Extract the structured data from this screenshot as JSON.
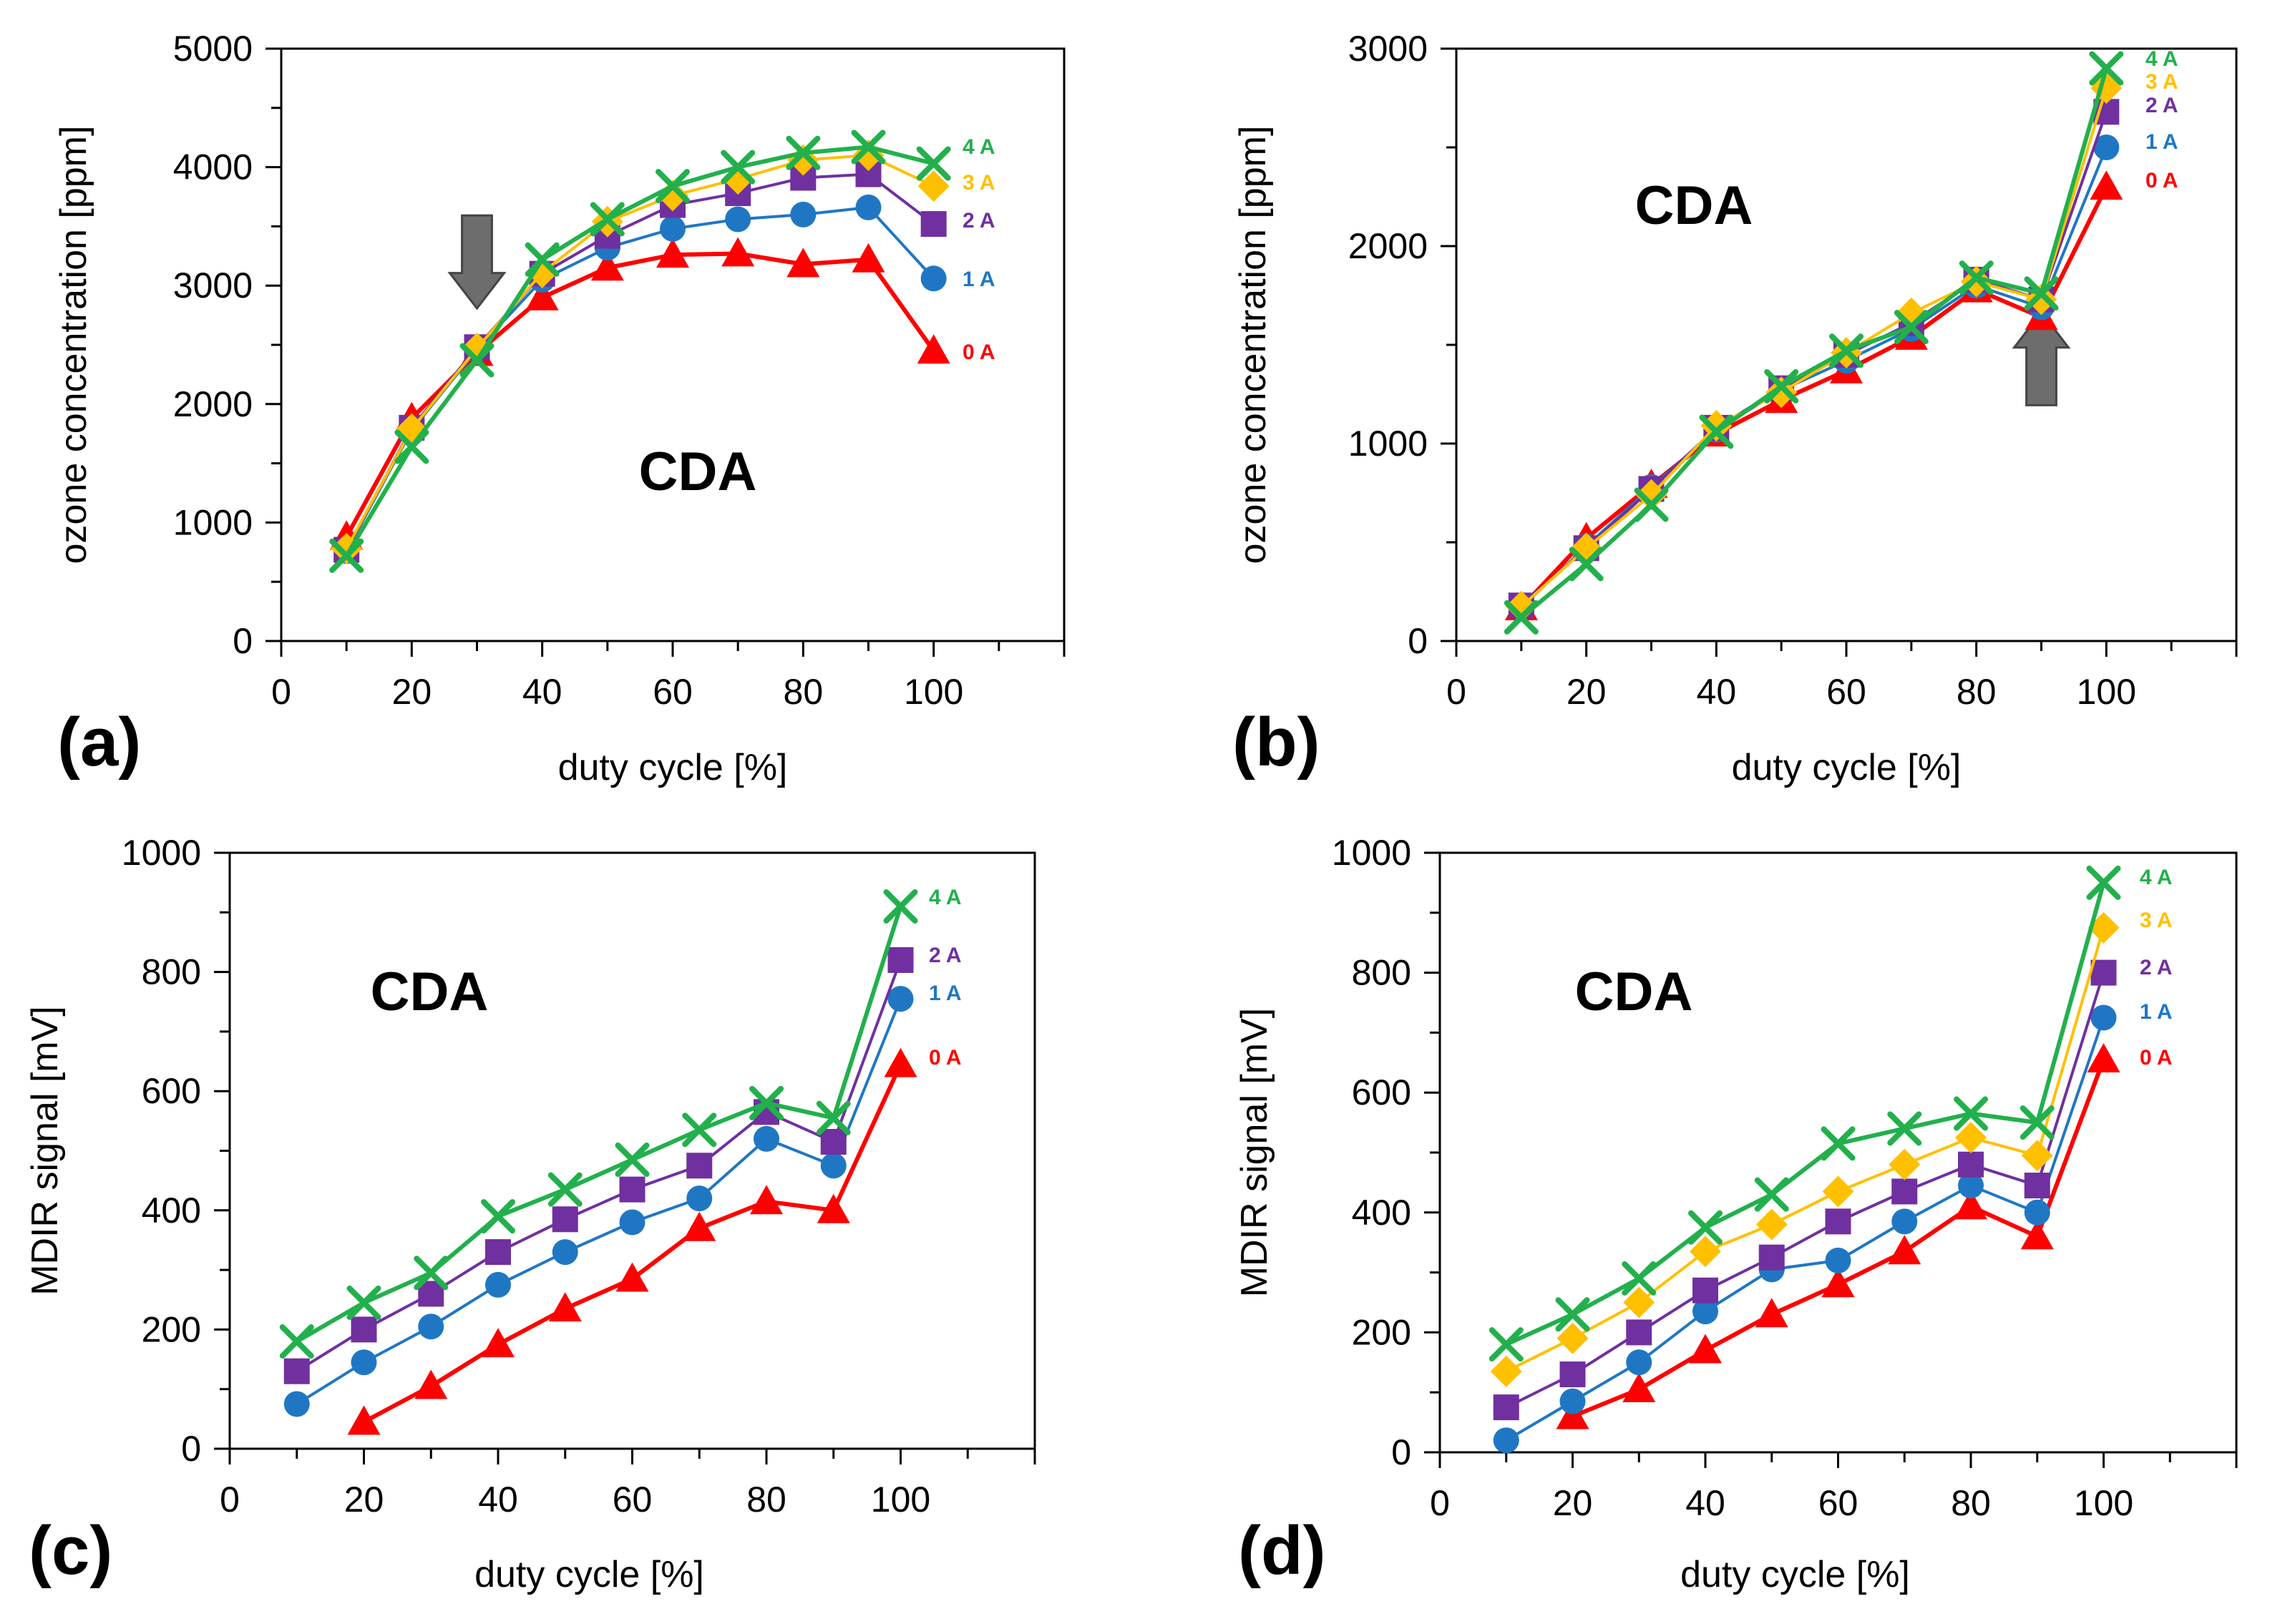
{
  "colors": {
    "0 A": "#ff0000",
    "1 A": "#1f77c4",
    "2 A": "#7030a0",
    "3 A": "#ffc000",
    "4 A": "#22b04c",
    "arrow": "#6d6d6d"
  },
  "chart_data": [
    {
      "id": "a",
      "type": "line",
      "panel_label": "(a)",
      "annotation": "CDA",
      "xlabel": "duty cycle [%]",
      "ylabel": "ozone concentration [ppm]",
      "xlim": [
        0,
        120
      ],
      "ylim": [
        0,
        5000
      ],
      "x_tick_values": [
        0,
        20,
        40,
        60,
        80,
        100
      ],
      "x_tick_labels": [
        "0",
        "20",
        "40",
        "60",
        "80",
        "100"
      ],
      "y_tick_values": [
        0,
        1000,
        2000,
        3000,
        4000,
        5000
      ],
      "y_tick_labels": [
        "0",
        "1000",
        "2000",
        "3000",
        "4000",
        "5000"
      ],
      "arrow": {
        "direction": "down",
        "x": 30,
        "y": 3200
      },
      "series": [
        {
          "name": "0 A",
          "marker": "triangle",
          "x": [
            10,
            20,
            30,
            40,
            50,
            60,
            70,
            80,
            90,
            100
          ],
          "values": [
            880,
            1880,
            2430,
            2900,
            3150,
            3260,
            3270,
            3180,
            3220,
            2450
          ]
        },
        {
          "name": "1 A",
          "marker": "circle",
          "x": [
            10,
            20,
            30,
            40,
            50,
            60,
            70,
            80,
            90,
            100
          ],
          "values": [
            760,
            1780,
            2460,
            3050,
            3320,
            3480,
            3560,
            3600,
            3660,
            3060
          ]
        },
        {
          "name": "2 A",
          "marker": "square",
          "x": [
            10,
            20,
            30,
            40,
            50,
            60,
            70,
            80,
            90,
            100
          ],
          "values": [
            770,
            1800,
            2480,
            3100,
            3420,
            3680,
            3780,
            3910,
            3940,
            3520
          ]
        },
        {
          "name": "3 A",
          "marker": "diamond",
          "x": [
            10,
            20,
            30,
            40,
            50,
            60,
            70,
            80,
            90,
            100
          ],
          "values": [
            780,
            1790,
            2470,
            3110,
            3540,
            3760,
            3900,
            4060,
            4100,
            3840
          ]
        },
        {
          "name": "4 A",
          "marker": "x",
          "x": [
            10,
            20,
            30,
            40,
            50,
            60,
            70,
            80,
            90,
            100
          ],
          "values": [
            720,
            1640,
            2370,
            3220,
            3560,
            3840,
            4000,
            4120,
            4170,
            4030
          ]
        }
      ]
    },
    {
      "id": "b",
      "type": "line",
      "panel_label": "(b)",
      "annotation": "CDA",
      "xlabel": "duty cycle [%]",
      "ylabel": "ozone concentration [ppm]",
      "xlim": [
        0,
        120
      ],
      "ylim": [
        0,
        3000
      ],
      "x_tick_values": [
        0,
        20,
        40,
        60,
        80,
        100
      ],
      "x_tick_labels": [
        "0",
        "20",
        "40",
        "60",
        "80",
        "100"
      ],
      "y_tick_values": [
        0,
        1000,
        2000,
        3000
      ],
      "y_tick_labels": [
        "0",
        "1000",
        "2000",
        "3000"
      ],
      "arrow": {
        "direction": "up",
        "x": 90,
        "y": 1430
      },
      "series": [
        {
          "name": "0 A",
          "marker": "triangle",
          "x": [
            10,
            20,
            30,
            40,
            50,
            60,
            70,
            80,
            90,
            100
          ],
          "values": [
            170,
            520,
            790,
            1050,
            1220,
            1370,
            1540,
            1780,
            1640,
            2300
          ]
        },
        {
          "name": "1 A",
          "marker": "circle",
          "x": [
            10,
            20,
            30,
            40,
            50,
            60,
            70,
            80,
            90,
            100
          ],
          "values": [
            170,
            480,
            780,
            1070,
            1270,
            1420,
            1580,
            1800,
            1690,
            2500
          ]
        },
        {
          "name": "2 A",
          "marker": "square",
          "x": [
            10,
            20,
            30,
            40,
            50,
            60,
            70,
            80,
            90,
            100
          ],
          "values": [
            180,
            470,
            770,
            1080,
            1280,
            1450,
            1610,
            1830,
            1730,
            2680
          ]
        },
        {
          "name": "3 A",
          "marker": "diamond",
          "x": [
            10,
            20,
            30,
            40,
            50,
            60,
            70,
            80,
            90,
            100
          ],
          "values": [
            175,
            470,
            740,
            1090,
            1260,
            1460,
            1660,
            1820,
            1730,
            2800
          ]
        },
        {
          "name": "4 A",
          "marker": "x",
          "x": [
            10,
            20,
            30,
            40,
            50,
            60,
            70,
            80,
            90,
            100
          ],
          "values": [
            120,
            390,
            690,
            1060,
            1290,
            1470,
            1590,
            1840,
            1760,
            2900
          ]
        }
      ]
    },
    {
      "id": "c",
      "type": "line",
      "panel_label": "(c)",
      "annotation": "CDA",
      "xlabel": "duty cycle [%]",
      "ylabel": "MDIR signal [mV]",
      "xlim": [
        0,
        120
      ],
      "ylim": [
        0,
        1000
      ],
      "x_tick_values": [
        0,
        20,
        40,
        60,
        80,
        100
      ],
      "x_tick_labels": [
        "0",
        "20",
        "40",
        "60",
        "80",
        "100"
      ],
      "y_tick_values": [
        0,
        200,
        400,
        600,
        800,
        1000
      ],
      "y_tick_labels": [
        "0",
        "200",
        "400",
        "600",
        "800",
        "1000"
      ],
      "series": [
        {
          "name": "0 A",
          "marker": "triangle",
          "x": [
            20,
            30,
            40,
            50,
            60,
            70,
            80,
            90,
            100
          ],
          "values": [
            45,
            105,
            175,
            235,
            285,
            370,
            415,
            400,
            645
          ]
        },
        {
          "name": "1 A",
          "marker": "circle",
          "x": [
            10,
            20,
            30,
            40,
            50,
            60,
            70,
            80,
            90,
            100
          ],
          "values": [
            75,
            145,
            205,
            275,
            330,
            380,
            420,
            520,
            475,
            755
          ]
        },
        {
          "name": "2 A",
          "marker": "square",
          "x": [
            10,
            20,
            30,
            40,
            50,
            60,
            70,
            80,
            90,
            100
          ],
          "values": [
            130,
            200,
            260,
            330,
            385,
            435,
            475,
            565,
            515,
            820
          ]
        },
        {
          "name": "4 A",
          "marker": "x",
          "x": [
            10,
            20,
            30,
            40,
            50,
            60,
            70,
            80,
            90,
            100
          ],
          "values": [
            180,
            245,
            295,
            390,
            435,
            485,
            535,
            580,
            555,
            910
          ]
        }
      ]
    },
    {
      "id": "d",
      "type": "line",
      "panel_label": "(d)",
      "annotation": "CDA",
      "xlabel": "duty cycle [%]",
      "ylabel": "MDIR signal [mV]",
      "xlim": [
        0,
        120
      ],
      "ylim": [
        0,
        1000
      ],
      "x_tick_values": [
        0,
        20,
        40,
        60,
        80,
        100
      ],
      "x_tick_labels": [
        "0",
        "20",
        "40",
        "60",
        "80",
        "100"
      ],
      "y_tick_values": [
        0,
        200,
        400,
        600,
        800,
        1000
      ],
      "y_tick_labels": [
        "0",
        "200",
        "400",
        "600",
        "800",
        "1000"
      ],
      "series": [
        {
          "name": "0 A",
          "marker": "triangle",
          "x": [
            20,
            30,
            40,
            50,
            60,
            70,
            80,
            90,
            100
          ],
          "values": [
            60,
            105,
            170,
            230,
            280,
            335,
            410,
            360,
            655
          ]
        },
        {
          "name": "1 A",
          "marker": "circle",
          "x": [
            10,
            20,
            30,
            40,
            50,
            60,
            70,
            80,
            90,
            100
          ],
          "values": [
            20,
            85,
            150,
            235,
            305,
            320,
            385,
            445,
            400,
            725
          ]
        },
        {
          "name": "2 A",
          "marker": "square",
          "x": [
            10,
            20,
            30,
            40,
            50,
            60,
            70,
            80,
            90,
            100
          ],
          "values": [
            75,
            130,
            200,
            270,
            325,
            385,
            435,
            480,
            445,
            800
          ]
        },
        {
          "name": "3 A",
          "marker": "diamond",
          "x": [
            10,
            20,
            30,
            40,
            50,
            60,
            70,
            80,
            90,
            100
          ],
          "values": [
            135,
            190,
            250,
            335,
            380,
            435,
            480,
            525,
            495,
            875
          ]
        },
        {
          "name": "4 A",
          "marker": "x",
          "x": [
            10,
            20,
            30,
            40,
            50,
            60,
            70,
            80,
            90,
            100
          ],
          "values": [
            180,
            230,
            290,
            375,
            430,
            515,
            540,
            565,
            550,
            950
          ]
        }
      ]
    }
  ]
}
